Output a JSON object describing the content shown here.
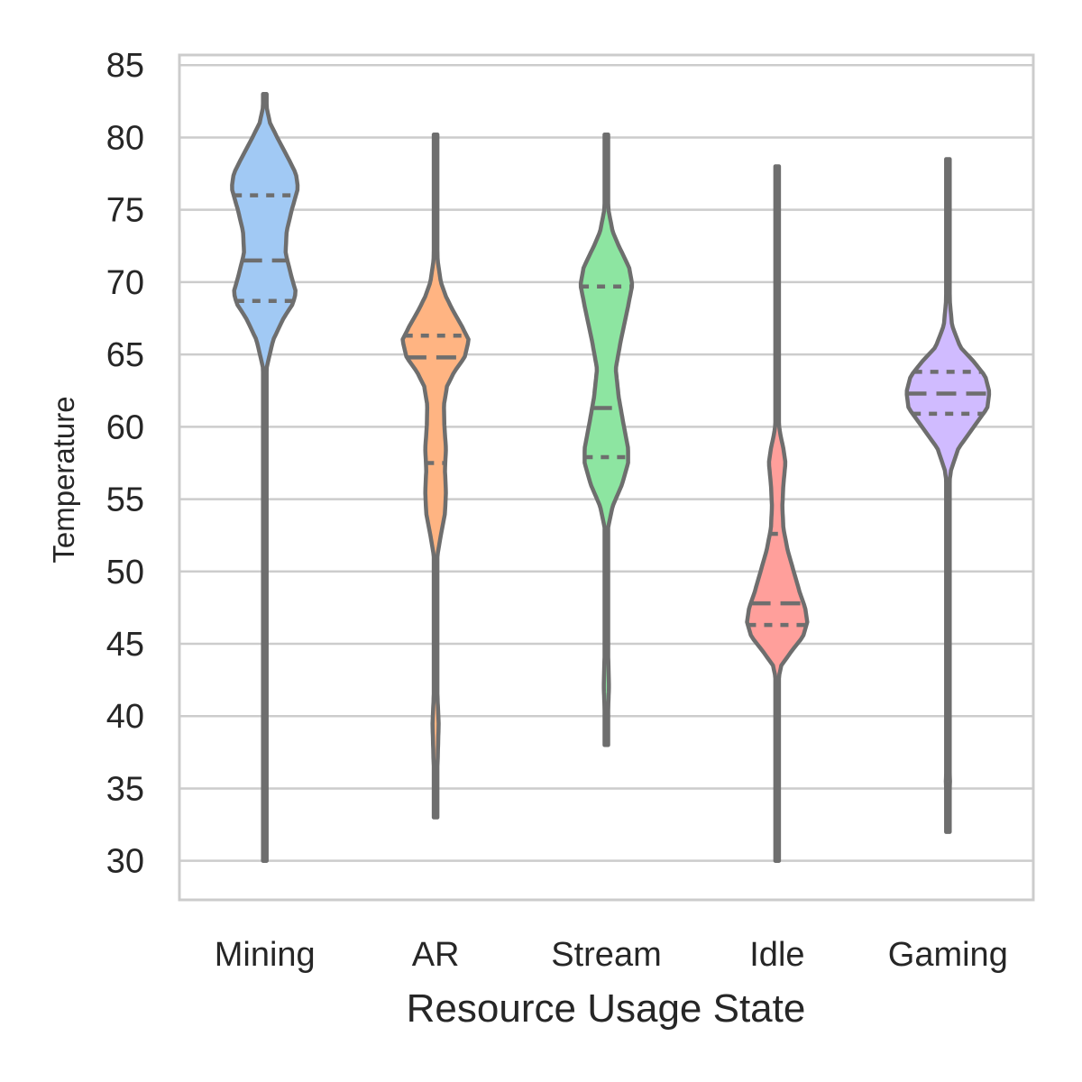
{
  "chart_data": {
    "type": "violin",
    "xlabel": "Resource Usage State",
    "ylabel": "Temperature",
    "ylim": [
      27.3,
      85.7
    ],
    "yticks": [
      30,
      35,
      40,
      45,
      50,
      55,
      60,
      65,
      70,
      75,
      80,
      85
    ],
    "grid": "horizontal",
    "categories": [
      "Mining",
      "AR",
      "Stream",
      "Idle",
      "Gaming"
    ],
    "colors": [
      "#a1c9f4",
      "#ffb482",
      "#8de5a1",
      "#ff9f9b",
      "#d0bbff"
    ],
    "outline_color": "#6e6e6e",
    "inner": "quartile",
    "violins": [
      {
        "category": "Mining",
        "min": 30,
        "q1": 68.7,
        "median": 71.5,
        "q3": 76,
        "max": 83,
        "profile": [
          [
            30,
            0.3
          ],
          [
            45,
            0.3
          ],
          [
            46,
            0.5
          ],
          [
            47,
            0.8
          ],
          [
            48,
            0.5
          ],
          [
            50,
            0.3
          ],
          [
            58,
            0.3
          ],
          [
            62,
            0.5
          ],
          [
            64,
            1.5
          ],
          [
            66,
            8
          ],
          [
            67.5,
            18
          ],
          [
            68.5,
            27
          ],
          [
            69.3,
            30
          ],
          [
            70.3,
            26
          ],
          [
            72,
            20
          ],
          [
            73.5,
            21
          ],
          [
            75,
            26
          ],
          [
            76.5,
            32
          ],
          [
            77.5,
            30
          ],
          [
            78.5,
            23
          ],
          [
            80,
            12
          ],
          [
            81,
            5
          ],
          [
            82,
            2
          ],
          [
            83,
            0.5
          ]
        ]
      },
      {
        "category": "AR",
        "min": 33,
        "q1": 57.5,
        "median": 64.8,
        "q3": 66.3,
        "max": 80.2,
        "profile": [
          [
            33,
            0.5
          ],
          [
            35,
            1
          ],
          [
            37,
            2
          ],
          [
            39.5,
            3
          ],
          [
            41,
            2
          ],
          [
            43,
            1
          ],
          [
            48,
            0.5
          ],
          [
            51,
            1.5
          ],
          [
            52.5,
            5
          ],
          [
            54,
            9
          ],
          [
            55.5,
            10
          ],
          [
            57,
            9
          ],
          [
            58.5,
            10
          ],
          [
            60,
            8.5
          ],
          [
            61.5,
            8
          ],
          [
            62.8,
            11
          ],
          [
            63.8,
            18
          ],
          [
            64.8,
            28
          ],
          [
            66,
            32
          ],
          [
            67,
            25
          ],
          [
            68,
            17
          ],
          [
            69,
            10
          ],
          [
            70,
            5
          ],
          [
            71.5,
            2
          ],
          [
            74,
            1
          ],
          [
            78,
            0.5
          ],
          [
            80.2,
            0.3
          ]
        ]
      },
      {
        "category": "Stream",
        "min": 38,
        "q1": 57.9,
        "median": 61.3,
        "q3": 69.7,
        "max": 80.2,
        "profile": [
          [
            38,
            0.5
          ],
          [
            40,
            1.5
          ],
          [
            42,
            2.5
          ],
          [
            43.5,
            2
          ],
          [
            46,
            1
          ],
          [
            50,
            0.8
          ],
          [
            53,
            1.5
          ],
          [
            54.5,
            6
          ],
          [
            56,
            15
          ],
          [
            57.5,
            21
          ],
          [
            58.5,
            21
          ],
          [
            60,
            17
          ],
          [
            62,
            12
          ],
          [
            64,
            9
          ],
          [
            66,
            14
          ],
          [
            68,
            20
          ],
          [
            69.8,
            25
          ],
          [
            71,
            22
          ],
          [
            72.5,
            12
          ],
          [
            73.5,
            6
          ],
          [
            75,
            2
          ],
          [
            77,
            1
          ],
          [
            80.2,
            0.3
          ]
        ]
      },
      {
        "category": "Idle",
        "min": 30,
        "q1": 46.3,
        "median": 47.8,
        "q3": 52.6,
        "max": 78,
        "profile": [
          [
            30,
            0.3
          ],
          [
            40,
            0.3
          ],
          [
            42.5,
            1
          ],
          [
            43.5,
            4
          ],
          [
            44.5,
            14
          ],
          [
            45.5,
            25
          ],
          [
            46.5,
            29
          ],
          [
            47.5,
            27
          ],
          [
            48.5,
            22
          ],
          [
            50,
            16
          ],
          [
            51.5,
            10
          ],
          [
            53,
            6
          ],
          [
            54.5,
            5
          ],
          [
            56,
            6
          ],
          [
            57.5,
            8
          ],
          [
            58.5,
            6
          ],
          [
            59.5,
            3
          ],
          [
            60.5,
            1
          ],
          [
            62,
            0.5
          ],
          [
            78,
            0.3
          ]
        ]
      },
      {
        "category": "Gaming",
        "min": 32,
        "q1": 60.9,
        "median": 62.3,
        "q3": 63.8,
        "max": 78.5,
        "profile": [
          [
            32,
            0.5
          ],
          [
            34,
            1
          ],
          [
            35.5,
            2
          ],
          [
            37,
            1
          ],
          [
            40,
            0.5
          ],
          [
            50,
            0.5
          ],
          [
            53,
            0.8
          ],
          [
            56,
            1
          ],
          [
            57,
            3
          ],
          [
            58.5,
            10
          ],
          [
            60,
            25
          ],
          [
            61.3,
            38
          ],
          [
            62.4,
            40
          ],
          [
            63.5,
            36
          ],
          [
            64.5,
            25
          ],
          [
            65.5,
            12
          ],
          [
            67,
            4
          ],
          [
            68.5,
            2
          ],
          [
            71,
            1
          ],
          [
            75,
            0.5
          ],
          [
            78.5,
            0.3
          ]
        ]
      }
    ]
  }
}
